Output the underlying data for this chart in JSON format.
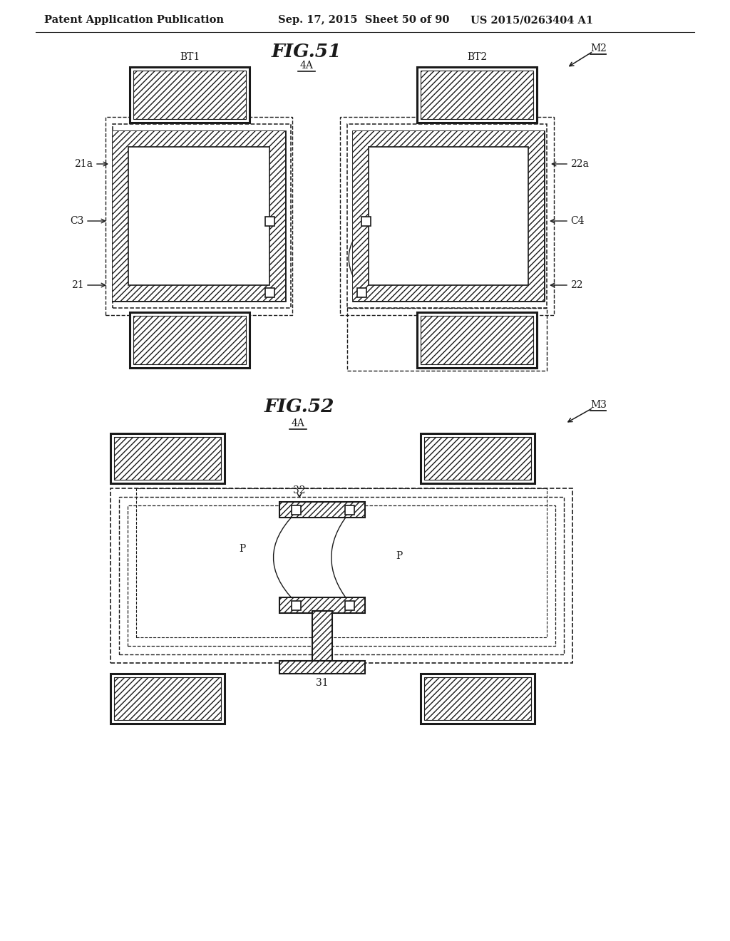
{
  "bg_color": "#ffffff",
  "header_text": "Patent Application Publication",
  "header_date": "Sep. 17, 2015  Sheet 50 of 90",
  "header_patent": "US 2015/0263404 A1",
  "fig51_title": "FIG.51",
  "fig52_title": "FIG.52",
  "lc": "#1a1a1a"
}
